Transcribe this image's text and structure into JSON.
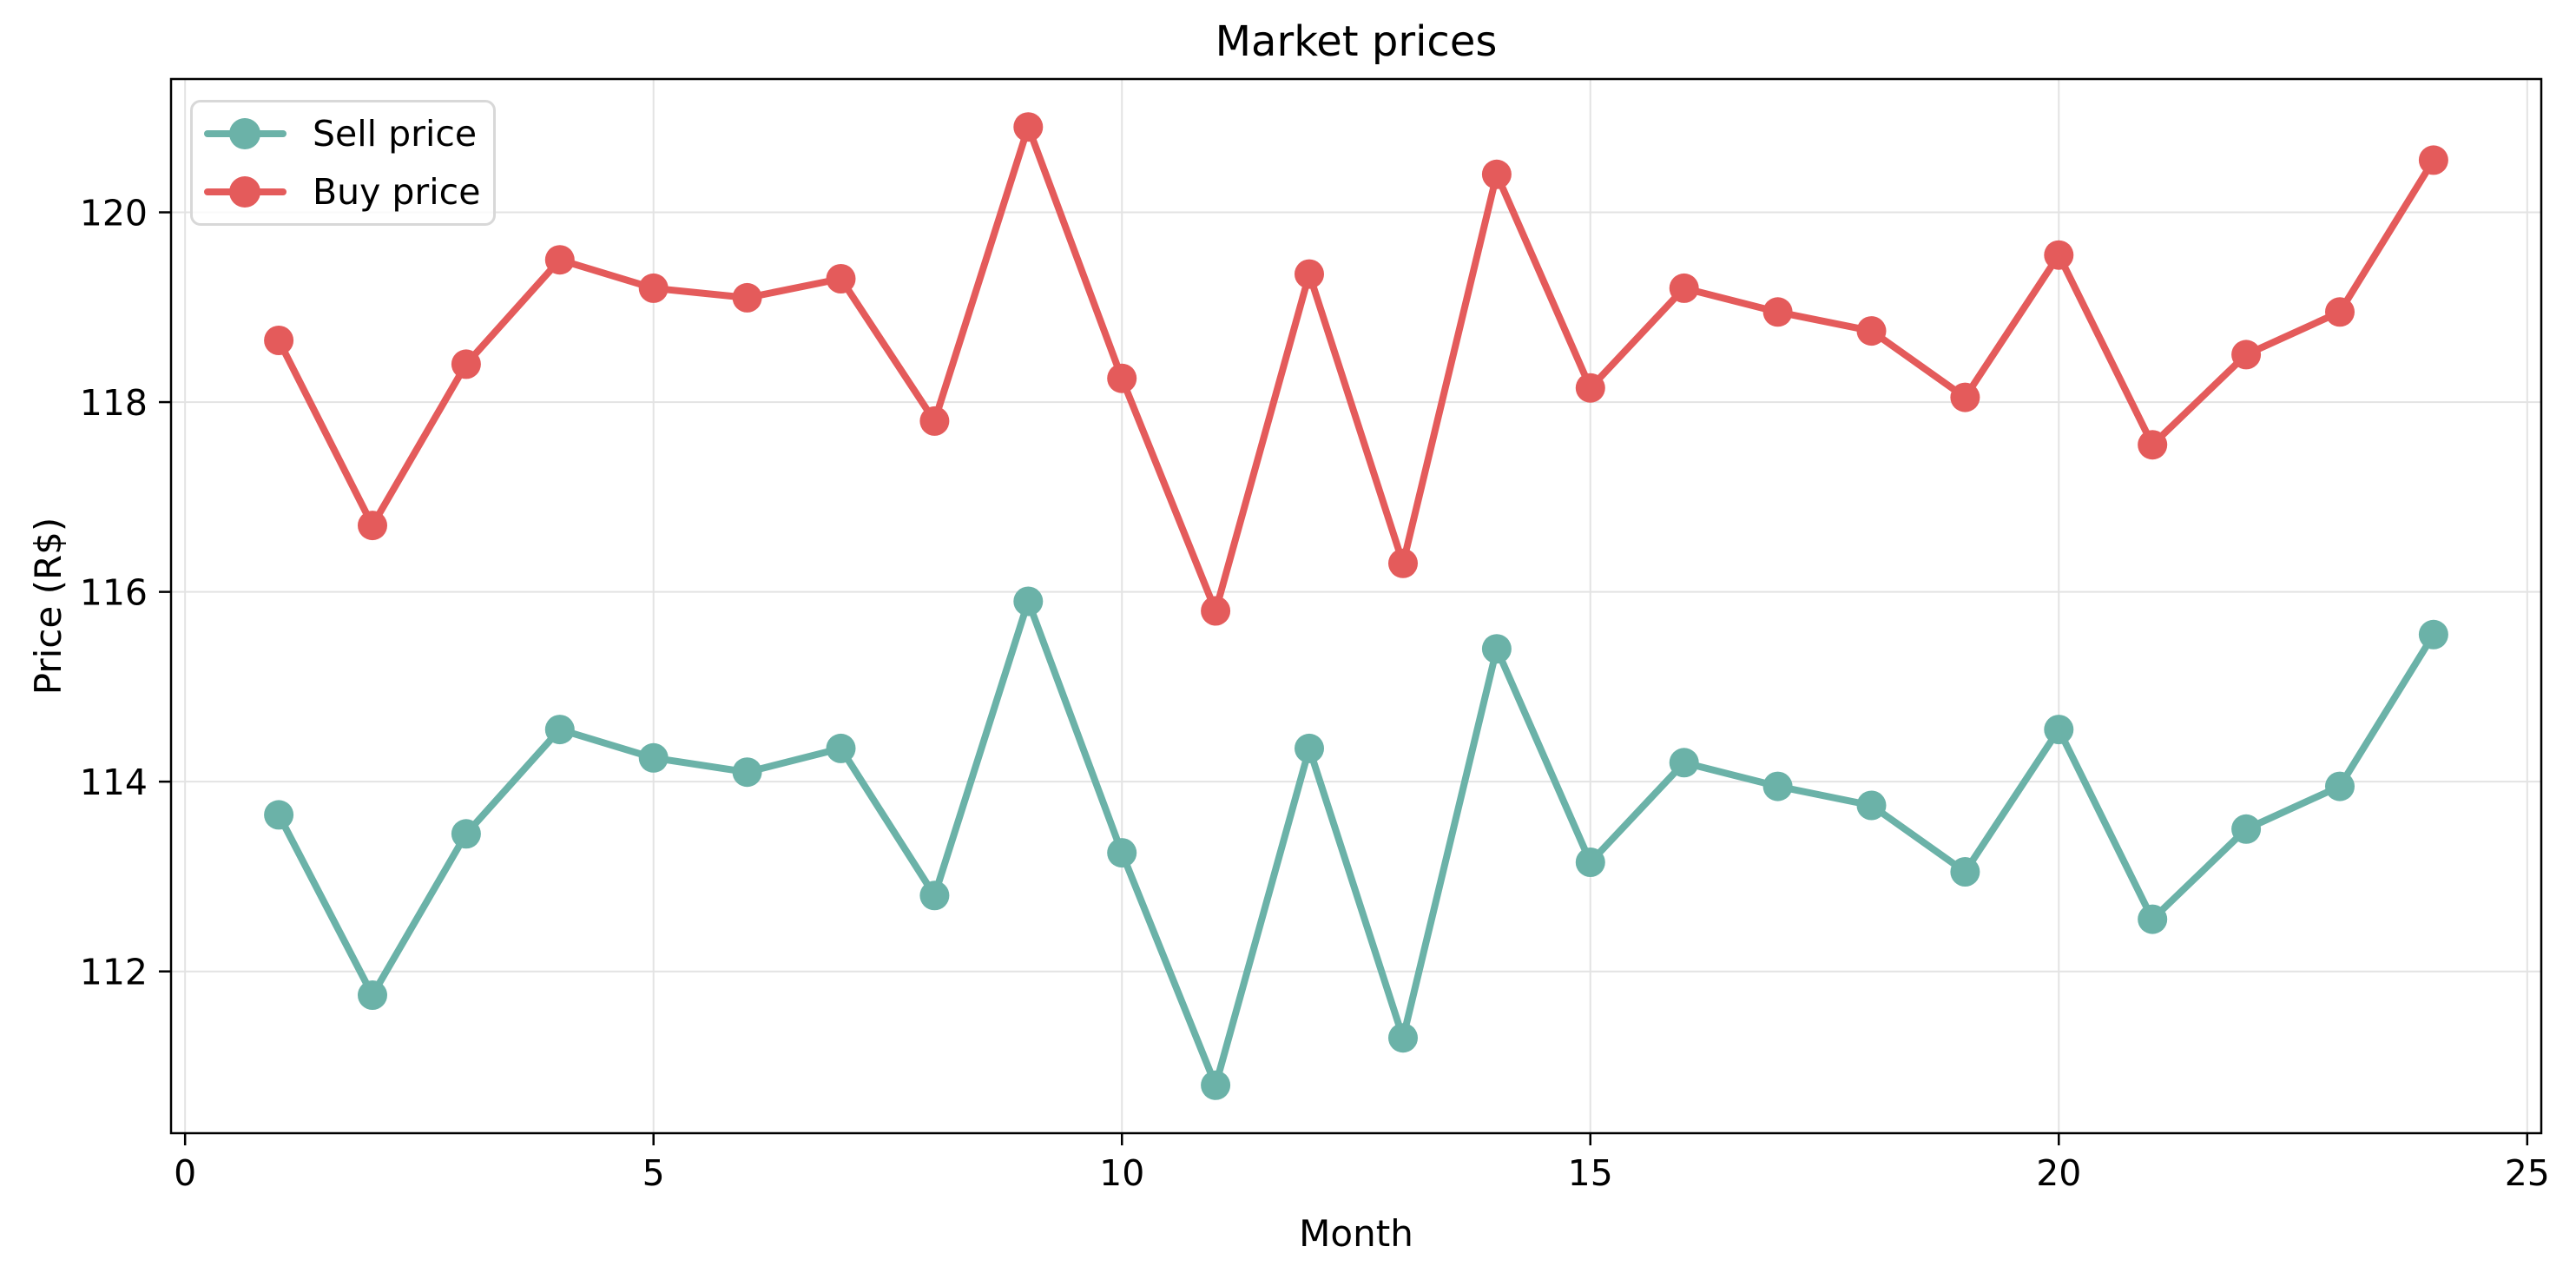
{
  "chart_data": {
    "type": "line",
    "title": "Market prices",
    "xlabel": "Month",
    "ylabel": "Price (R$)",
    "x": [
      1,
      2,
      3,
      4,
      5,
      6,
      7,
      8,
      9,
      10,
      11,
      12,
      13,
      14,
      15,
      16,
      17,
      18,
      19,
      20,
      21,
      22,
      23,
      24
    ],
    "series": [
      {
        "name": "Sell price",
        "color": "#6bb2a8",
        "values": [
          113.65,
          111.75,
          113.45,
          114.55,
          114.25,
          114.1,
          114.35,
          112.8,
          115.9,
          113.25,
          110.8,
          114.35,
          111.3,
          115.4,
          113.15,
          114.2,
          113.95,
          113.75,
          113.05,
          114.55,
          112.55,
          113.5,
          113.95,
          115.55
        ]
      },
      {
        "name": "Buy price",
        "color": "#e45b5b",
        "values": [
          118.65,
          116.7,
          118.4,
          119.5,
          119.2,
          119.1,
          119.3,
          117.8,
          120.9,
          118.25,
          115.8,
          119.35,
          116.3,
          120.4,
          118.15,
          119.2,
          118.95,
          118.75,
          118.05,
          119.55,
          117.55,
          118.5,
          118.95,
          120.55
        ]
      }
    ],
    "xlim": [
      -0.15,
      25.15
    ],
    "ylim": [
      110.295,
      121.405
    ],
    "x_ticks": [
      0,
      5,
      10,
      15,
      20,
      25
    ],
    "y_ticks": [
      112,
      114,
      116,
      118,
      120
    ],
    "grid": true,
    "legend_position": "upper left"
  },
  "style": {
    "grid_color": "#e3e3e3",
    "spine_color": "#000000",
    "tick_color": "#000000",
    "text_color": "#000000",
    "tick_font_px": 41,
    "marker_radius": 17,
    "line_width": 8
  }
}
